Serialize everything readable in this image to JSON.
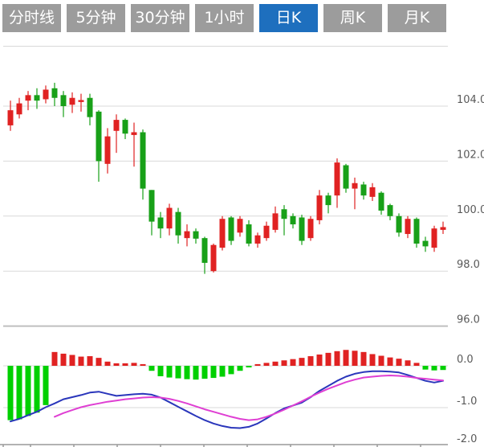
{
  "tabs": {
    "items": [
      {
        "label": "分时线",
        "name": "tab-timeline",
        "active": false
      },
      {
        "label": "5分钟",
        "name": "tab-5min",
        "active": false
      },
      {
        "label": "30分钟",
        "name": "tab-30min",
        "active": false
      },
      {
        "label": "1小时",
        "name": "tab-1hour",
        "active": false
      },
      {
        "label": "日K",
        "name": "tab-daily",
        "active": true
      },
      {
        "label": "周K",
        "name": "tab-weekly",
        "active": false
      },
      {
        "label": "月K",
        "name": "tab-monthly",
        "active": false
      }
    ]
  },
  "colors": {
    "tab_bg": "#9c9c9c",
    "tab_active_bg": "#1e6fbe",
    "tab_text": "#ffffff",
    "candle_up": "#e02222",
    "candle_down": "#18a018",
    "hist_up": "#e02222",
    "hist_down": "#00d000",
    "dif_line": "#2a36bb",
    "dea_line": "#df3fd3",
    "grid": "#d9d9d9",
    "separator": "#bfbfbf",
    "axis": "#999999",
    "label": "#595959",
    "background": "#ffffff"
  },
  "axes": {
    "price_ticks": [
      {
        "label": "104.0",
        "value": 104.0
      },
      {
        "label": "102.0",
        "value": 102.0
      },
      {
        "label": "100.0",
        "value": 100.0
      },
      {
        "label": "98.0",
        "value": 98.0
      },
      {
        "label": "96.0",
        "value": 96.0
      }
    ],
    "macd_ticks": [
      {
        "label": "0.0",
        "value": 0.0
      },
      {
        "label": "-1.0",
        "value": -1.0
      },
      {
        "label": "-2.0",
        "value": -2.0
      }
    ]
  },
  "chart_data": [
    {
      "type": "candlestick",
      "title": "",
      "interval_selected": "日K",
      "grid": "horizontal",
      "legend_position": "none",
      "ylim": [
        95.9,
        106.2
      ],
      "yticks": [
        104.0,
        102.0,
        100.0,
        98.0,
        96.0
      ],
      "candle_colors": {
        "rising": "red",
        "falling": "green"
      },
      "ohlc_columns": [
        "open",
        "high",
        "low",
        "close"
      ],
      "ohlc": [
        [
          103.3,
          104.2,
          103.1,
          103.85
        ],
        [
          103.7,
          104.3,
          103.55,
          104.1
        ],
        [
          104.2,
          104.55,
          103.85,
          104.4
        ],
        [
          104.4,
          104.65,
          103.9,
          104.2
        ],
        [
          104.25,
          104.75,
          104.1,
          104.6
        ],
        [
          104.65,
          104.85,
          104.0,
          104.3
        ],
        [
          104.4,
          104.55,
          103.6,
          104.0
        ],
        [
          104.05,
          104.5,
          103.75,
          104.3
        ],
        [
          104.15,
          104.45,
          103.8,
          104.22
        ],
        [
          104.3,
          104.45,
          103.3,
          103.6
        ],
        [
          103.8,
          103.85,
          101.25,
          102.0
        ],
        [
          101.9,
          103.2,
          101.55,
          102.9
        ],
        [
          103.1,
          103.7,
          102.3,
          103.5
        ],
        [
          103.5,
          103.55,
          102.8,
          103.0
        ],
        [
          102.95,
          103.4,
          101.8,
          103.05
        ],
        [
          103.05,
          103.15,
          100.6,
          101.0
        ],
        [
          100.95,
          100.95,
          99.3,
          99.8
        ],
        [
          99.95,
          100.15,
          99.2,
          99.55
        ],
        [
          99.55,
          100.45,
          99.3,
          100.3
        ],
        [
          100.15,
          100.3,
          99.0,
          99.3
        ],
        [
          99.2,
          99.7,
          98.9,
          99.45
        ],
        [
          99.45,
          99.55,
          99.0,
          99.18
        ],
        [
          99.2,
          99.25,
          97.9,
          98.3
        ],
        [
          98.0,
          99.0,
          97.95,
          98.95
        ],
        [
          98.85,
          100.0,
          98.75,
          99.9
        ],
        [
          99.95,
          100.0,
          98.95,
          99.1
        ],
        [
          99.4,
          100.0,
          99.25,
          99.9
        ],
        [
          99.7,
          99.85,
          98.9,
          99.0
        ],
        [
          99.0,
          99.4,
          98.85,
          99.3
        ],
        [
          99.2,
          99.8,
          99.1,
          99.65
        ],
        [
          99.5,
          100.35,
          99.4,
          100.1
        ],
        [
          100.25,
          100.4,
          99.3,
          99.9
        ],
        [
          100.0,
          100.1,
          99.55,
          99.7
        ],
        [
          99.95,
          100.05,
          98.95,
          99.1
        ],
        [
          99.2,
          100.0,
          99.1,
          99.9
        ],
        [
          99.85,
          100.95,
          99.7,
          100.75
        ],
        [
          100.75,
          100.85,
          100.1,
          100.4
        ],
        [
          100.75,
          102.1,
          100.3,
          101.95
        ],
        [
          101.85,
          101.9,
          100.85,
          101.0
        ],
        [
          101.0,
          101.4,
          100.25,
          101.2
        ],
        [
          101.15,
          101.25,
          100.6,
          100.75
        ],
        [
          100.7,
          101.2,
          100.55,
          101.05
        ],
        [
          100.85,
          100.9,
          100.05,
          100.2
        ],
        [
          100.4,
          100.45,
          99.85,
          100.0
        ],
        [
          100.0,
          100.1,
          99.25,
          99.4
        ],
        [
          99.35,
          100.0,
          99.2,
          99.9
        ],
        [
          99.9,
          99.95,
          98.85,
          99.0
        ],
        [
          99.1,
          99.25,
          98.7,
          98.9
        ],
        [
          98.85,
          99.65,
          98.7,
          99.55
        ],
        [
          99.5,
          99.8,
          99.35,
          99.6
        ]
      ]
    },
    {
      "type": "bar",
      "name": "MACD",
      "ylim": [
        0.95,
        -1.9
      ],
      "yticks": [
        0.0,
        -1.0,
        -2.0
      ],
      "histogram": [
        -1.3,
        -1.28,
        -1.2,
        -1.12,
        -0.94,
        0.33,
        0.29,
        0.26,
        0.22,
        0.23,
        0.19,
        0.1,
        0.06,
        0.06,
        0.07,
        0.04,
        -0.12,
        -0.25,
        -0.28,
        -0.3,
        -0.32,
        -0.33,
        -0.31,
        -0.29,
        -0.26,
        -0.2,
        -0.12,
        -0.03,
        0.04,
        0.07,
        0.1,
        0.13,
        0.16,
        0.19,
        0.23,
        0.27,
        0.31,
        0.35,
        0.38,
        0.36,
        0.33,
        0.28,
        0.24,
        0.2,
        0.17,
        0.13,
        0.07,
        -0.09,
        -0.11,
        -0.1
      ],
      "dif": [
        -1.33,
        -1.27,
        -1.18,
        -1.1,
        -0.99,
        -0.9,
        -0.8,
        -0.75,
        -0.7,
        -0.64,
        -0.62,
        -0.67,
        -0.72,
        -0.7,
        -0.68,
        -0.67,
        -0.69,
        -0.76,
        -0.87,
        -0.98,
        -1.09,
        -1.2,
        -1.3,
        -1.38,
        -1.44,
        -1.48,
        -1.49,
        -1.46,
        -1.38,
        -1.26,
        -1.13,
        -1.02,
        -0.95,
        -0.88,
        -0.75,
        -0.6,
        -0.48,
        -0.36,
        -0.26,
        -0.19,
        -0.15,
        -0.13,
        -0.13,
        -0.14,
        -0.16,
        -0.22,
        -0.29,
        -0.36,
        -0.4,
        -0.36
      ],
      "dea": [
        null,
        null,
        null,
        null,
        null,
        -1.22,
        -1.13,
        -1.06,
        -0.99,
        -0.94,
        -0.9,
        -0.86,
        -0.83,
        -0.8,
        -0.78,
        -0.76,
        -0.75,
        -0.76,
        -0.79,
        -0.84,
        -0.9,
        -0.97,
        -1.04,
        -1.1,
        -1.16,
        -1.22,
        -1.27,
        -1.3,
        -1.28,
        -1.22,
        -1.14,
        -1.05,
        -0.95,
        -0.85,
        -0.74,
        -0.64,
        -0.55,
        -0.47,
        -0.39,
        -0.33,
        -0.28,
        -0.26,
        -0.24,
        -0.23,
        -0.24,
        -0.26,
        -0.29,
        -0.31,
        -0.33,
        -0.35
      ]
    }
  ]
}
